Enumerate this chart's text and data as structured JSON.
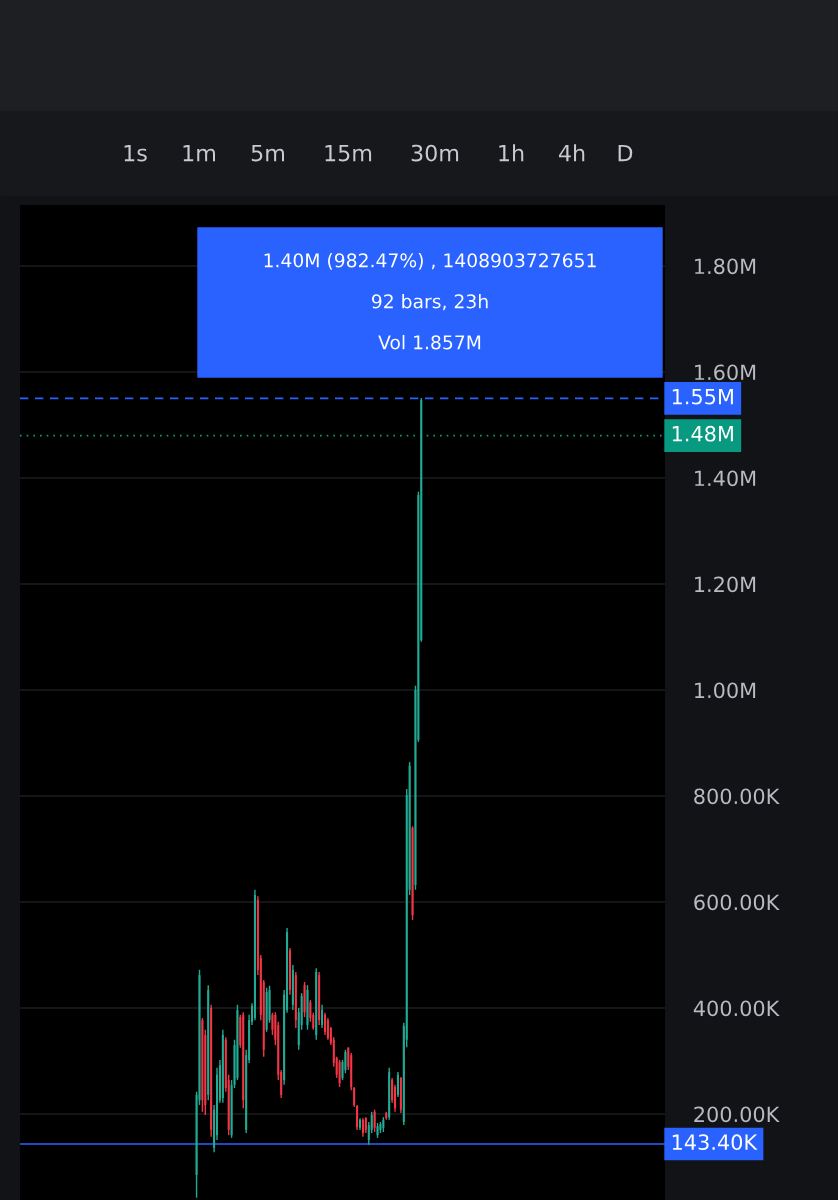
{
  "chart_data": {
    "type": "candlestick",
    "categories": [
      null,
      null,
      null,
      null,
      null,
      null,
      null,
      null,
      null,
      null,
      null,
      null,
      null,
      null,
      null,
      null,
      null,
      null,
      null,
      null,
      null,
      null,
      null,
      null,
      null,
      null,
      null,
      null,
      null,
      null,
      null,
      null,
      null,
      null,
      null,
      null,
      null,
      null,
      null,
      null,
      null,
      null,
      null,
      null,
      null,
      null,
      null,
      null,
      null,
      null,
      null,
      null,
      null,
      null,
      null,
      null,
      null,
      null,
      null,
      null,
      null,
      null,
      null,
      null,
      null,
      null,
      null,
      null,
      null,
      null,
      null,
      null,
      null,
      null,
      null,
      null,
      null,
      null,
      null,
      null,
      null,
      null,
      null,
      null,
      null,
      null,
      null,
      null,
      null,
      null,
      null,
      null,
      null,
      null,
      null,
      null,
      null,
      null,
      null,
      null,
      null,
      null,
      null,
      null,
      null,
      null,
      null,
      null,
      null,
      null,
      null,
      null,
      null,
      null,
      null,
      null,
      null,
      null,
      null,
      null,
      null,
      null,
      null,
      null,
      null,
      null,
      null,
      null,
      null,
      null,
      null,
      null,
      null,
      null,
      null,
      null,
      null,
      null,
      null,
      null,
      null,
      null,
      null,
      null,
      null,
      null,
      null,
      null,
      null,
      null,
      null,
      null,
      null,
      null,
      null,
      null,
      null,
      null,
      null,
      null,
      null,
      null,
      null,
      null,
      null,
      null,
      null,
      null,
      null,
      null,
      null,
      null,
      null,
      null,
      null,
      null,
      null,
      null,
      null,
      null,
      null,
      null,
      null,
      null,
      null,
      null,
      null,
      null,
      null,
      null,
      null,
      null,
      null,
      null,
      null,
      null,
      null,
      null,
      null,
      null,
      null,
      null,
      null,
      null,
      null,
      null,
      null,
      null,
      null,
      null,
      null,
      null,
      null,
      null,
      null,
      null,
      null,
      null,
      null,
      null,
      null
    ],
    "ohlc": [
      null,
      null,
      null,
      null,
      null,
      null,
      null,
      null,
      null,
      null,
      null,
      null,
      null,
      null,
      null,
      null,
      null,
      null,
      null,
      null,
      null,
      null,
      null,
      null,
      null,
      null,
      null,
      null,
      null,
      null,
      null,
      null,
      null,
      null,
      null,
      null,
      null,
      null,
      null,
      null,
      null,
      null,
      null,
      null,
      null,
      null,
      null,
      null,
      null,
      null,
      null,
      null,
      null,
      null,
      null,
      null,
      null,
      null,
      null,
      null,
      [
        85000,
        242000,
        42000,
        236000
      ],
      [
        226000,
        472000,
        217000,
        462000
      ],
      [
        377000,
        381000,
        204000,
        226000
      ],
      [
        349000,
        359000,
        198000,
        217000
      ],
      [
        236000,
        443000,
        226000,
        434000
      ],
      [
        400000,
        406000,
        157000,
        170000
      ],
      [
        136000,
        217000,
        128000,
        208000
      ],
      [
        160000,
        287000,
        151000,
        274000
      ],
      [
        226000,
        302000,
        221000,
        292000
      ],
      [
        230000,
        359000,
        221000,
        349000
      ],
      [
        340000,
        345000,
        242000,
        249000
      ],
      [
        264000,
        274000,
        160000,
        170000
      ],
      [
        160000,
        264000,
        155000,
        255000
      ],
      [
        255000,
        340000,
        249000,
        330000
      ],
      [
        268000,
        406000,
        264000,
        396000
      ],
      [
        383000,
        387000,
        325000,
        330000
      ],
      [
        387000,
        392000,
        211000,
        226000
      ],
      [
        170000,
        321000,
        164000,
        311000
      ],
      [
        302000,
        387000,
        296000,
        377000
      ],
      [
        374000,
        409000,
        368000,
        404000
      ],
      [
        381000,
        623000,
        377000,
        613000
      ],
      [
        604000,
        611000,
        462000,
        472000
      ],
      [
        494000,
        500000,
        377000,
        387000
      ],
      [
        449000,
        453000,
        308000,
        321000
      ],
      [
        359000,
        438000,
        355000,
        430000
      ],
      [
        377000,
        442000,
        372000,
        434000
      ],
      [
        387000,
        391000,
        349000,
        359000
      ],
      [
        387000,
        392000,
        330000,
        340000
      ],
      [
        368000,
        374000,
        264000,
        274000
      ],
      [
        279000,
        283000,
        230000,
        236000
      ],
      [
        264000,
        434000,
        255000,
        425000
      ],
      [
        396000,
        551000,
        391000,
        543000
      ],
      [
        509000,
        513000,
        425000,
        434000
      ],
      [
        406000,
        481000,
        396000,
        472000
      ],
      [
        462000,
        468000,
        362000,
        377000
      ],
      [
        330000,
        400000,
        321000,
        392000
      ],
      [
        368000,
        428000,
        359000,
        423000
      ],
      [
        443000,
        449000,
        383000,
        392000
      ],
      [
        368000,
        443000,
        359000,
        434000
      ],
      [
        411000,
        415000,
        374000,
        381000
      ],
      [
        387000,
        391000,
        359000,
        362000
      ],
      [
        349000,
        475000,
        340000,
        468000
      ],
      [
        462000,
        468000,
        368000,
        377000
      ],
      [
        368000,
        406000,
        362000,
        396000
      ],
      [
        387000,
        391000,
        349000,
        355000
      ],
      [
        377000,
        381000,
        340000,
        343000
      ],
      [
        362000,
        364000,
        330000,
        334000
      ],
      [
        340000,
        345000,
        289000,
        296000
      ],
      [
        306000,
        308000,
        268000,
        274000
      ],
      [
        298000,
        302000,
        251000,
        258000
      ],
      [
        268000,
        302000,
        264000,
        298000
      ],
      [
        283000,
        321000,
        277000,
        317000
      ],
      [
        325000,
        326000,
        283000,
        289000
      ],
      [
        311000,
        315000,
        245000,
        251000
      ],
      [
        249000,
        251000,
        213000,
        217000
      ],
      [
        215000,
        217000,
        170000,
        175000
      ],
      [
        174000,
        192000,
        170000,
        189000
      ],
      [
        189000,
        192000,
        157000,
        164000
      ],
      [
        192000,
        194000,
        164000,
        170000
      ],
      [
        151000,
        185000,
        142000,
        179000
      ],
      [
        170000,
        204000,
        164000,
        198000
      ],
      [
        204000,
        208000,
        166000,
        174000
      ],
      [
        160000,
        183000,
        155000,
        177000
      ],
      [
        170000,
        185000,
        164000,
        181000
      ],
      [
        174000,
        194000,
        166000,
        189000
      ],
      [
        202000,
        204000,
        189000,
        192000
      ],
      [
        194000,
        287000,
        189000,
        279000
      ],
      [
        264000,
        268000,
        221000,
        226000
      ],
      [
        251000,
        255000,
        204000,
        211000
      ],
      [
        236000,
        279000,
        232000,
        274000
      ],
      [
        268000,
        270000,
        202000,
        208000
      ],
      [
        185000,
        372000,
        179000,
        366000
      ],
      [
        340000,
        813000,
        326000,
        802000
      ],
      [
        623000,
        864000,
        613000,
        857000
      ],
      [
        740000,
        743000,
        566000,
        575000
      ],
      [
        632000,
        1008000,
        623000,
        1000000
      ],
      [
        906000,
        1374000,
        902000,
        1368000
      ],
      [
        1094000,
        1551000,
        1091000,
        1547000
      ],
      null,
      null,
      null,
      null,
      null,
      null,
      null,
      null,
      null,
      null,
      null,
      null,
      null,
      null,
      null,
      null,
      null,
      null,
      null,
      null,
      null,
      null,
      null,
      null,
      null,
      null,
      null,
      null,
      null,
      null,
      null,
      null,
      null,
      null,
      null,
      null,
      null,
      null,
      null,
      null,
      null,
      null,
      null,
      null,
      null,
      null,
      null,
      null,
      null,
      null,
      null,
      null,
      null,
      null,
      null,
      null,
      null,
      null,
      null,
      null,
      null,
      null,
      null,
      null,
      null,
      null,
      null,
      null,
      null,
      null,
      null,
      null,
      null,
      null,
      null,
      null,
      null,
      null,
      null,
      null,
      null,
      null,
      null
    ],
    "ylim": [
      37700,
      1915000
    ],
    "yticks": [
      {
        "value": 200000,
        "label": "200.00K"
      },
      {
        "value": 400000,
        "label": "400.00K"
      },
      {
        "value": 600000,
        "label": "600.00K"
      },
      {
        "value": 800000,
        "label": "800.00K"
      },
      {
        "value": 1000000,
        "label": "1.00M"
      },
      {
        "value": 1200000,
        "label": "1.20M"
      },
      {
        "value": 1400000,
        "label": "1.40M"
      },
      {
        "value": 1600000,
        "label": "1.60M"
      },
      {
        "value": 1800000,
        "label": "1.80M"
      }
    ],
    "grid": "y",
    "tick_labels": "y",
    "ref_lines": [
      {
        "axis": "y",
        "value": 1550000,
        "label": "1.55M",
        "color": "#2962ff",
        "line_style": "dashed"
      },
      {
        "axis": "y",
        "value": 1480000,
        "label": "1.48M",
        "color": "#089981",
        "line_style": "dotted"
      },
      {
        "axis": "y",
        "value": 143400,
        "label": "143.40K",
        "color": "#2962ff",
        "line_style": "solid"
      }
    ],
    "annotations": [
      "1.40M (982.47%) , 1408903727651",
      "92 bars, 23h",
      "Vol 1.857M",
      "1s",
      "1m",
      "5m",
      "15m",
      "30m",
      "1h",
      "4h",
      "D"
    ]
  }
}
